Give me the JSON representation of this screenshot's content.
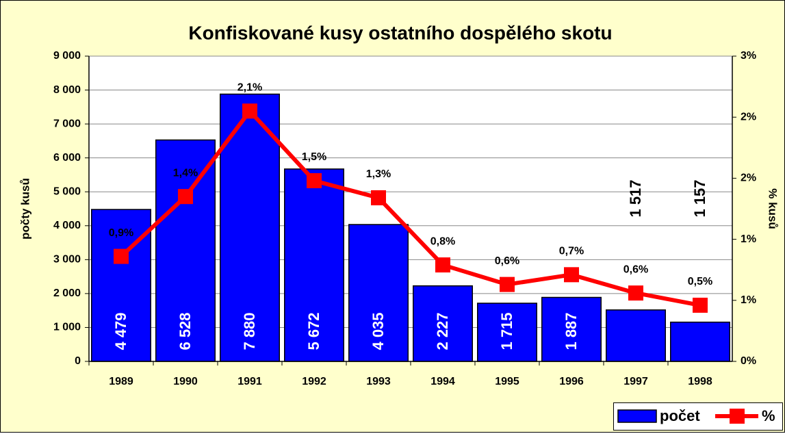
{
  "chart_data": {
    "type": "bar_line",
    "title": "Konfiskované kusy ostatního dospělého skotu",
    "y_label": "počty kusů",
    "y2_label": "% kusů",
    "categories": [
      "1989",
      "1990",
      "1991",
      "1992",
      "1993",
      "1994",
      "1995",
      "1996",
      "1997",
      "1998"
    ],
    "series": [
      {
        "name": "počet",
        "type": "bar",
        "color": "#0000ff",
        "values": [
          4479,
          6528,
          7880,
          5672,
          4035,
          2227,
          1715,
          1887,
          1517,
          1157
        ],
        "value_labels": [
          "4 479",
          "6 528",
          "7 880",
          "5 672",
          "4 035",
          "2 227",
          "1 715",
          "1 887",
          "1 517",
          "1 157"
        ]
      },
      {
        "name": "%",
        "type": "line",
        "axis": "y2",
        "color": "#ff0000",
        "values": [
          0.86,
          1.35,
          2.05,
          1.48,
          1.34,
          0.79,
          0.63,
          0.71,
          0.56,
          0.46
        ],
        "value_labels": [
          "0,9%",
          "1,4%",
          "2,1%",
          "1,5%",
          "1,3%",
          "0,8%",
          "0,6%",
          "0,7%",
          "0,6%",
          "0,5%"
        ]
      }
    ],
    "ylim": [
      0,
      9000
    ],
    "yticks": [
      0,
      {
        "value": 1000,
        "label": "1 000"
      },
      {
        "value": 2000,
        "label": "2 000"
      },
      {
        "value": 3000,
        "label": "3 000"
      },
      {
        "value": 4000,
        "label": "4 000"
      },
      {
        "value": 5000,
        "label": "5 000"
      },
      {
        "value": 6000,
        "label": "6 000"
      },
      {
        "value": 7000,
        "label": "7 000"
      },
      {
        "value": 8000,
        "label": "8 000"
      },
      {
        "value": 9000,
        "label": "9 000"
      }
    ],
    "y2lim": [
      0,
      2.5
    ],
    "y2ticks": [
      {
        "value": 0,
        "label": "0%"
      },
      {
        "value": 0.5,
        "label": "1%"
      },
      {
        "value": 1,
        "label": "1%"
      },
      {
        "value": 1.5,
        "label": "2%"
      },
      {
        "value": 2,
        "label": "2%"
      },
      {
        "value": 2.5,
        "label": "3%"
      }
    ],
    "grid": true
  }
}
